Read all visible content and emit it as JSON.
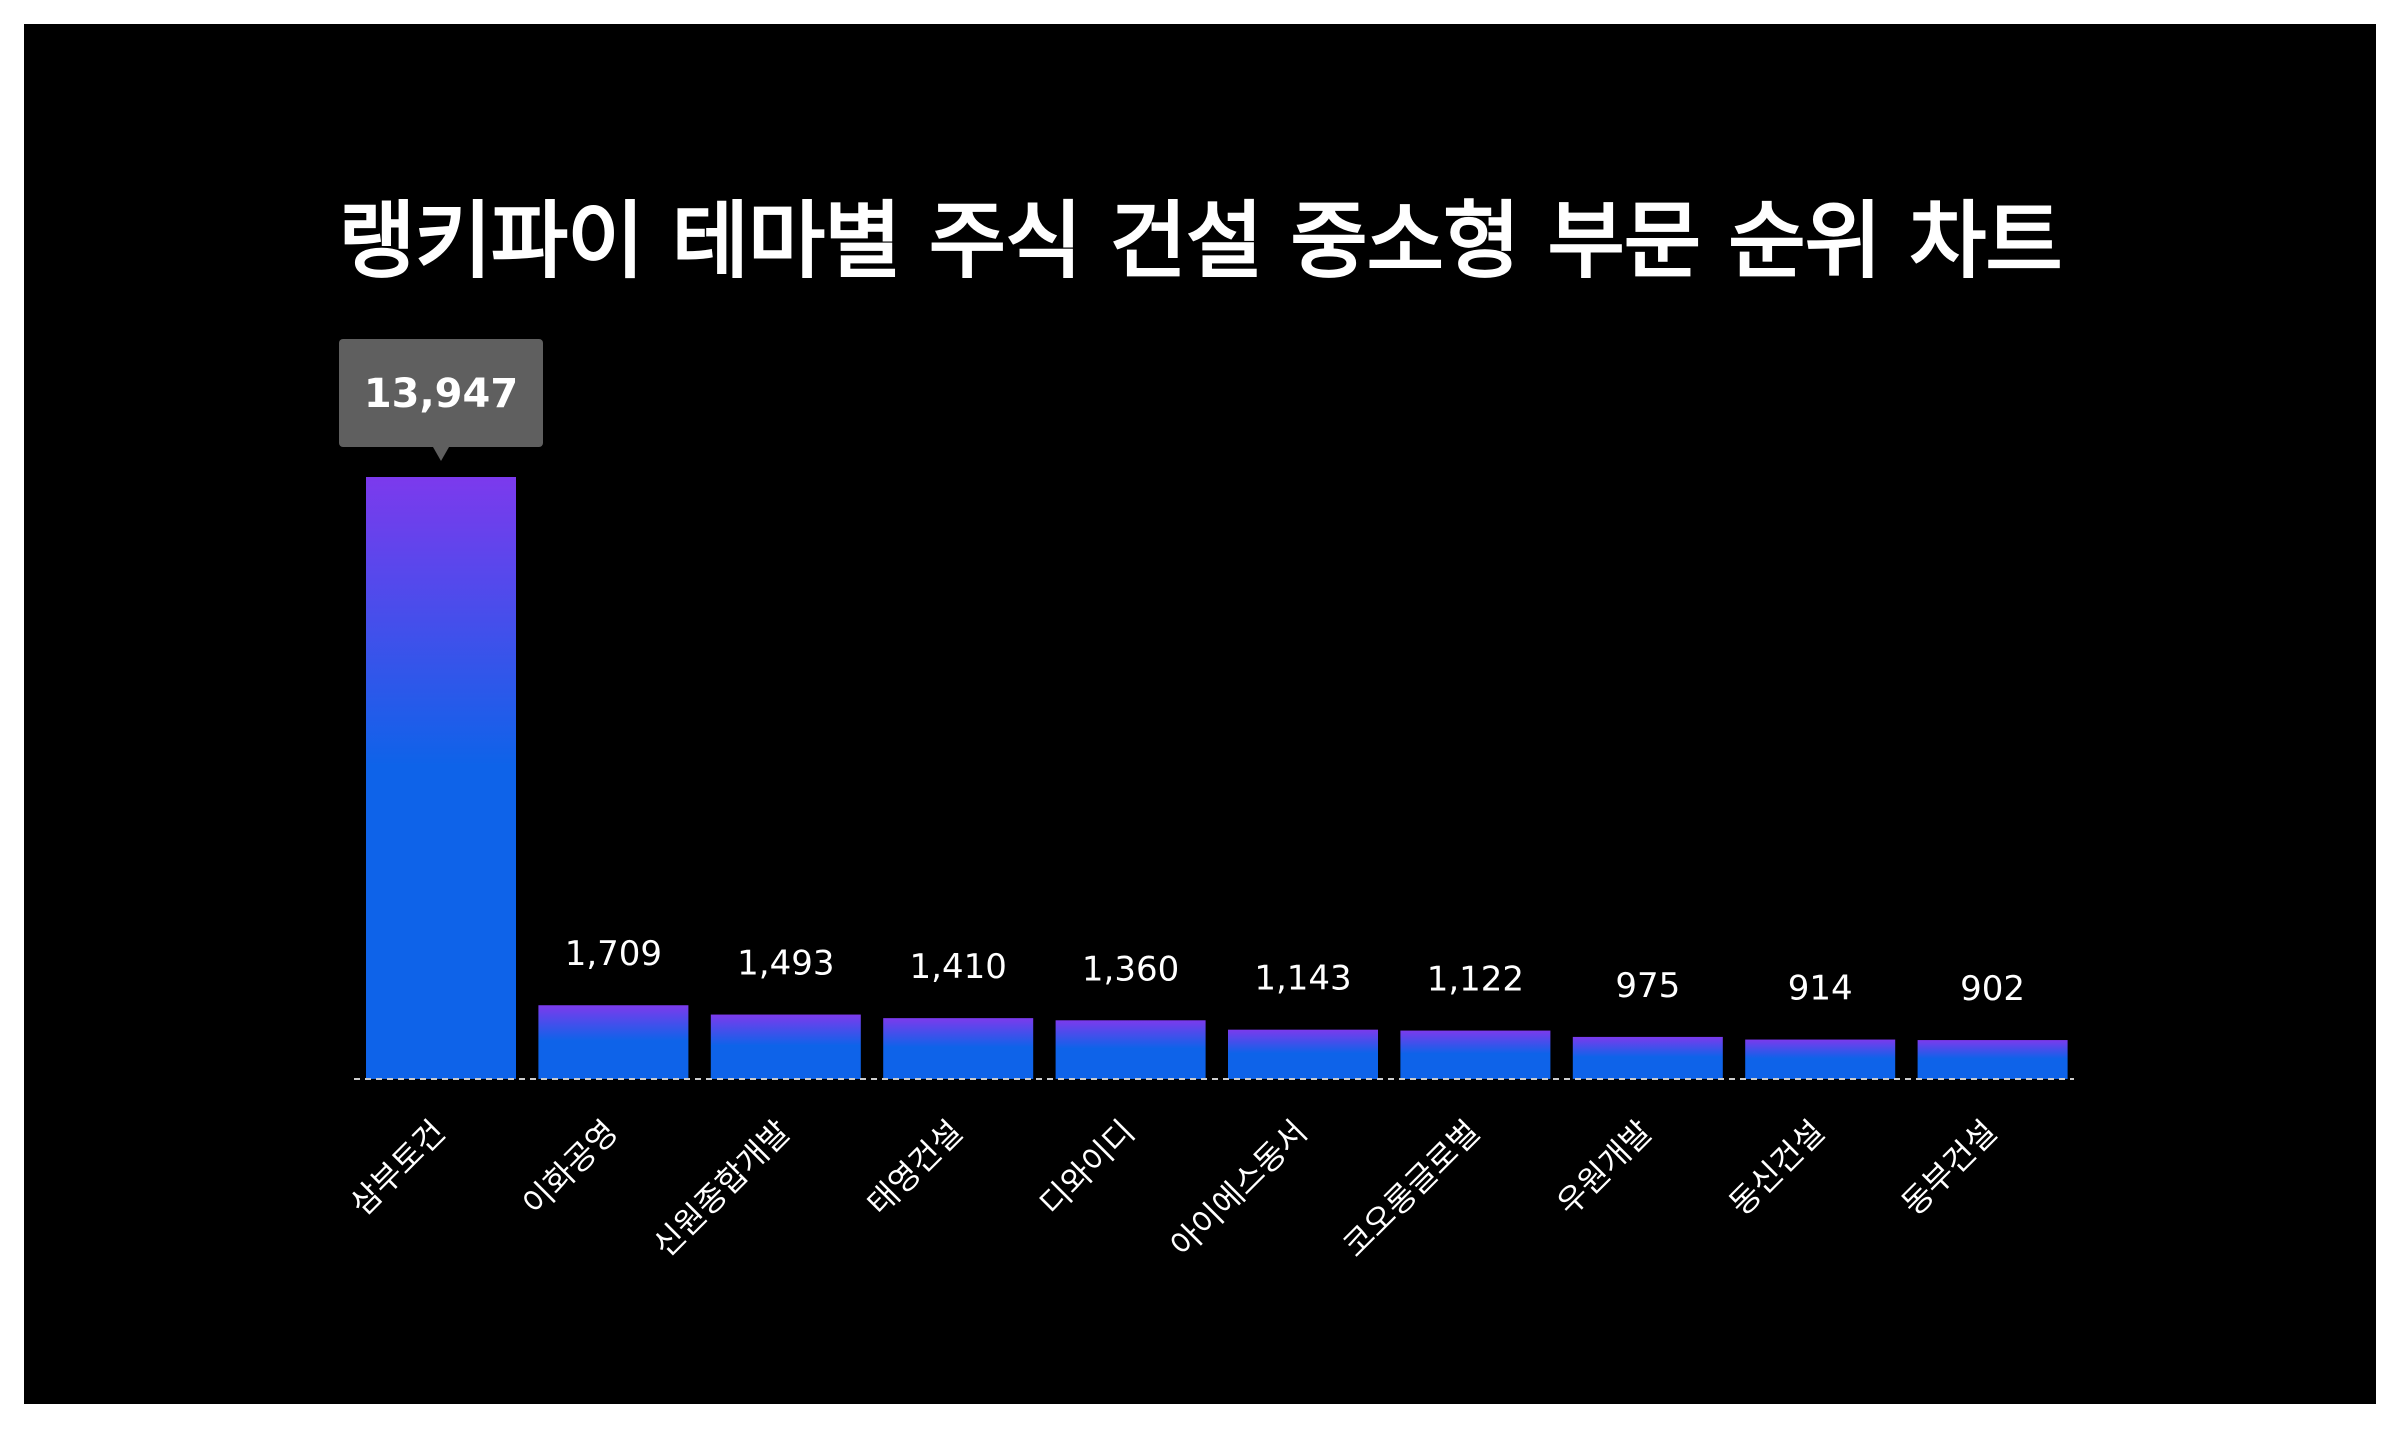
{
  "colors": {
    "background": "#000000",
    "bar_top": "#7c3aed",
    "bar_bottom": "#0e63e9",
    "tooltip_bg": "#5f5f5f",
    "baseline": "#cccccc",
    "text": "#ffffff"
  },
  "chart_data": {
    "type": "bar",
    "title": "랭키파이 테마별 주식 건설 중소형 부문 순위 차트",
    "categories": [
      "삼부토건",
      "이화공영",
      "신원종합개발",
      "태영건설",
      "디와이디",
      "아이에스동서",
      "코오롱글로벌",
      "우원개발",
      "동신건설",
      "동부건설"
    ],
    "values": [
      13947,
      1709,
      1493,
      1410,
      1360,
      1143,
      1122,
      975,
      914,
      902
    ],
    "value_labels": [
      "13,947",
      "1,709",
      "1,493",
      "1,410",
      "1,360",
      "1,143",
      "1,122",
      "975",
      "914",
      "902"
    ],
    "highlighted_index": 0,
    "xlabel": "",
    "ylabel": "",
    "ylim": [
      0,
      13947
    ],
    "grid": false,
    "legend": "none"
  }
}
